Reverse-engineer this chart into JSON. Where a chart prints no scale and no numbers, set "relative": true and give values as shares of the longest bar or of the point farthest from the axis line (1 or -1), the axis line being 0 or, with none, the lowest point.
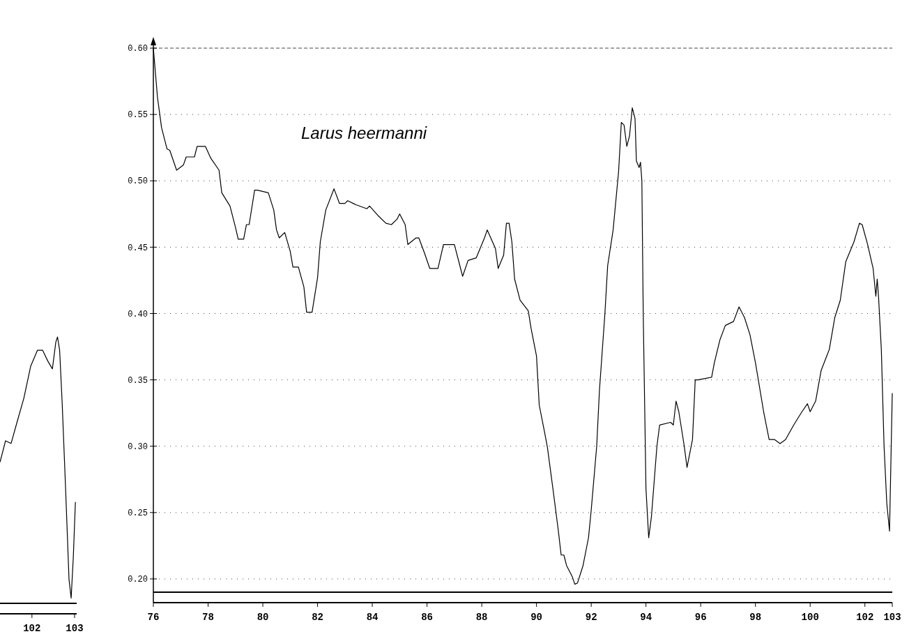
{
  "chart_data": [
    {
      "type": "line",
      "relative": true,
      "xlim": [
        101.25,
        103.05
      ],
      "xticks": [
        102,
        103
      ],
      "color": "#000000",
      "x": [
        101.25,
        101.38,
        101.51,
        101.65,
        101.81,
        101.97,
        102.13,
        102.25,
        102.37,
        102.48,
        102.56,
        102.6,
        102.65,
        102.71,
        102.79,
        102.87,
        102.92,
        102.97,
        103.02
      ],
      "values": [
        0.53,
        0.61,
        0.6,
        0.68,
        0.77,
        0.89,
        0.95,
        0.95,
        0.91,
        0.88,
        0.98,
        1.0,
        0.95,
        0.75,
        0.43,
        0.09,
        0.02,
        0.17,
        0.38
      ]
    },
    {
      "type": "line",
      "title": "Larus heermanni",
      "xlim": [
        76,
        103
      ],
      "ylim": [
        0.19,
        0.6
      ],
      "grid": "y",
      "color": "#000000",
      "xticks": [
        76,
        78,
        80,
        82,
        84,
        86,
        88,
        90,
        92,
        94,
        96,
        98,
        100,
        102,
        103
      ],
      "yticks": [
        {
          "value": 0.2,
          "label": "0.20"
        },
        {
          "value": 0.25,
          "label": "0.25"
        },
        {
          "value": 0.3,
          "label": "0.30"
        },
        {
          "value": 0.35,
          "label": "0.35"
        },
        {
          "value": 0.4,
          "label": "0.40"
        },
        {
          "value": 0.45,
          "label": "0.45"
        },
        {
          "value": 0.5,
          "label": "0.50"
        },
        {
          "value": 0.55,
          "label": "0.55"
        },
        {
          "value": 0.6,
          "label": "0.60"
        }
      ],
      "x": [
        76.0,
        76.15,
        76.3,
        76.5,
        76.6,
        76.85,
        77.1,
        77.2,
        77.5,
        77.6,
        77.9,
        78.1,
        78.4,
        78.5,
        78.8,
        79.0,
        79.1,
        79.3,
        79.4,
        79.5,
        79.7,
        79.8,
        80.2,
        80.4,
        80.5,
        80.6,
        80.8,
        81.0,
        81.1,
        81.3,
        81.5,
        81.6,
        81.8,
        82.0,
        82.1,
        82.3,
        82.6,
        82.8,
        83.0,
        83.1,
        83.4,
        83.8,
        83.9,
        84.2,
        84.5,
        84.7,
        84.9,
        85.0,
        85.2,
        85.3,
        85.6,
        85.7,
        85.9,
        86.1,
        86.4,
        86.6,
        87.0,
        87.2,
        87.3,
        87.5,
        87.8,
        88.1,
        88.2,
        88.5,
        88.6,
        88.8,
        88.9,
        89.0,
        89.1,
        89.2,
        89.4,
        89.7,
        89.8,
        90.0,
        90.1,
        90.3,
        90.4,
        90.6,
        90.8,
        90.9,
        91.0,
        91.1,
        91.3,
        91.4,
        91.5,
        91.7,
        91.9,
        92.0,
        92.2,
        92.3,
        92.5,
        92.6,
        92.8,
        93.0,
        93.1,
        93.2,
        93.3,
        93.4,
        93.5,
        93.6,
        93.65,
        93.75,
        93.8,
        93.85,
        93.9,
        94.0,
        94.1,
        94.2,
        94.4,
        94.5,
        94.9,
        95.0,
        95.1,
        95.2,
        95.4,
        95.5,
        95.7,
        95.8,
        95.9,
        96.4,
        96.5,
        96.7,
        96.9,
        97.2,
        97.4,
        97.6,
        97.8,
        98.0,
        98.3,
        98.5,
        98.7,
        98.9,
        99.1,
        99.4,
        99.7,
        99.9,
        100.0,
        100.2,
        100.4,
        100.7,
        100.9,
        101.1,
        101.3,
        101.6,
        101.8,
        101.9,
        102.1,
        102.3,
        102.4,
        102.45,
        102.5,
        102.6,
        102.7,
        102.8,
        102.9,
        103.0
      ],
      "values": [
        0.6,
        0.563,
        0.54,
        0.524,
        0.523,
        0.508,
        0.512,
        0.518,
        0.518,
        0.526,
        0.526,
        0.517,
        0.508,
        0.491,
        0.481,
        0.465,
        0.456,
        0.456,
        0.467,
        0.467,
        0.493,
        0.493,
        0.491,
        0.478,
        0.463,
        0.457,
        0.461,
        0.447,
        0.435,
        0.435,
        0.42,
        0.401,
        0.401,
        0.427,
        0.454,
        0.478,
        0.494,
        0.483,
        0.483,
        0.485,
        0.482,
        0.479,
        0.481,
        0.474,
        0.468,
        0.467,
        0.471,
        0.475,
        0.467,
        0.452,
        0.457,
        0.457,
        0.446,
        0.434,
        0.434,
        0.452,
        0.452,
        0.436,
        0.428,
        0.44,
        0.442,
        0.457,
        0.463,
        0.449,
        0.434,
        0.444,
        0.468,
        0.468,
        0.454,
        0.426,
        0.41,
        0.402,
        0.389,
        0.368,
        0.331,
        0.31,
        0.299,
        0.268,
        0.236,
        0.218,
        0.218,
        0.21,
        0.202,
        0.196,
        0.197,
        0.21,
        0.231,
        0.252,
        0.3,
        0.342,
        0.4,
        0.436,
        0.463,
        0.507,
        0.544,
        0.542,
        0.526,
        0.534,
        0.555,
        0.547,
        0.515,
        0.51,
        0.514,
        0.5,
        0.4,
        0.268,
        0.231,
        0.247,
        0.3,
        0.316,
        0.318,
        0.316,
        0.334,
        0.326,
        0.3,
        0.284,
        0.305,
        0.35,
        0.35,
        0.352,
        0.363,
        0.38,
        0.391,
        0.394,
        0.405,
        0.397,
        0.384,
        0.363,
        0.326,
        0.305,
        0.305,
        0.302,
        0.305,
        0.316,
        0.326,
        0.332,
        0.326,
        0.334,
        0.357,
        0.373,
        0.397,
        0.41,
        0.439,
        0.454,
        0.468,
        0.467,
        0.452,
        0.434,
        0.413,
        0.426,
        0.412,
        0.373,
        0.3,
        0.257,
        0.236,
        0.34
      ]
    }
  ]
}
